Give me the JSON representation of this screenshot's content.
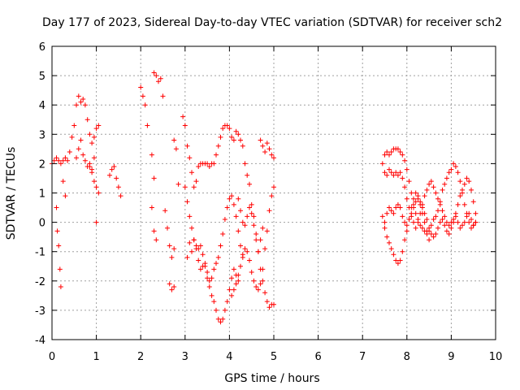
{
  "chart_data": {
    "type": "scatter",
    "title": "Day 177 of 2023, Sidereal Day-to-day VTEC variation (SDTVAR) for receiver sch2",
    "xlabel": "GPS time / hours",
    "ylabel": "SDTVAR / TECUs",
    "xlim": [
      0,
      10
    ],
    "ylim": [
      -4,
      6
    ],
    "x_ticks": [
      "0",
      "1",
      "2",
      "3",
      "4",
      "5",
      "6",
      "7",
      "8",
      "9",
      "10"
    ],
    "y_ticks": [
      "-4",
      "-3",
      "-2",
      "-1",
      "0",
      "1",
      "2",
      "3",
      "4",
      "5",
      "6"
    ],
    "grid": true,
    "marker": "+",
    "series": [
      {
        "name": "sch2",
        "color": "#ff0000",
        "segments": [
          {
            "x": [
              0.0,
              0.05,
              0.1,
              0.15,
              0.2,
              0.25,
              0.3,
              0.35
            ],
            "y": [
              2.0,
              2.1,
              2.2,
              2.1,
              2.0,
              2.1,
              2.2,
              2.1
            ]
          },
          {
            "x": [
              0.1,
              0.12,
              0.15,
              0.18,
              0.2
            ],
            "y": [
              0.5,
              -0.3,
              -0.8,
              -1.6,
              -2.2
            ]
          },
          {
            "x": [
              0.25,
              0.3
            ],
            "y": [
              1.4,
              0.9
            ]
          },
          {
            "x": [
              0.4,
              0.45,
              0.5,
              0.55,
              0.6,
              0.65,
              0.7,
              0.75,
              0.8,
              0.85,
              0.9,
              0.95,
              1.0,
              1.05
            ],
            "y": [
              2.4,
              2.9,
              3.3,
              4.0,
              4.3,
              4.1,
              4.2,
              4.0,
              3.5,
              3.0,
              2.7,
              2.9,
              3.2,
              3.3
            ]
          },
          {
            "x": [
              0.55,
              0.6,
              0.65,
              0.7,
              0.75,
              0.8,
              0.85,
              0.9,
              0.95,
              1.0,
              1.05
            ],
            "y": [
              2.2,
              2.5,
              2.8,
              2.3,
              2.1,
              1.9,
              2.0,
              1.7,
              1.4,
              1.2,
              1.0
            ]
          },
          {
            "x": [
              0.85,
              0.9,
              0.95,
              1.0
            ],
            "y": [
              1.9,
              1.8,
              2.2,
              0.0
            ]
          },
          {
            "x": [
              1.3,
              1.35,
              1.4,
              1.45,
              1.5,
              1.55
            ],
            "y": [
              1.6,
              1.8,
              1.9,
              1.5,
              1.2,
              0.9
            ]
          },
          {
            "x": [
              2.0,
              2.05,
              2.1,
              2.15
            ],
            "y": [
              4.6,
              4.3,
              4.0,
              3.3
            ]
          },
          {
            "x": [
              2.3,
              2.35,
              2.4,
              2.45,
              2.5
            ],
            "y": [
              5.1,
              5.0,
              4.8,
              4.9,
              4.3
            ]
          },
          {
            "x": [
              2.25,
              2.3
            ],
            "y": [
              2.3,
              1.5
            ]
          },
          {
            "x": [
              2.25,
              2.3,
              2.35
            ],
            "y": [
              0.5,
              -0.3,
              -0.6
            ]
          },
          {
            "x": [
              2.55,
              2.6,
              2.65,
              2.7,
              2.75
            ],
            "y": [
              0.4,
              -0.2,
              -0.8,
              -1.2,
              -0.9
            ]
          },
          {
            "x": [
              2.65,
              2.7,
              2.75
            ],
            "y": [
              -2.1,
              -2.3,
              -2.2
            ]
          },
          {
            "x": [
              2.75,
              2.8,
              2.85
            ],
            "y": [
              2.8,
              2.5,
              1.3
            ]
          },
          {
            "x": [
              2.95,
              3.0,
              3.05,
              3.1,
              3.15,
              3.2,
              3.25,
              3.3,
              3.35,
              3.4,
              3.45,
              3.5,
              3.55,
              3.6,
              3.65,
              3.7,
              3.75,
              3.8,
              3.85,
              3.9,
              3.95,
              4.0,
              4.05,
              4.1,
              4.15,
              4.2,
              4.25,
              4.3,
              4.35,
              4.4,
              4.45,
              4.5,
              4.55,
              4.6,
              4.65,
              4.7,
              4.75,
              4.8,
              4.85,
              4.9,
              4.95,
              5.0
            ],
            "y": [
              3.6,
              3.3,
              2.6,
              2.2,
              1.7,
              1.2,
              1.4,
              1.9,
              2.0,
              2.0,
              2.0,
              2.0,
              1.9,
              2.0,
              2.0,
              2.3,
              2.6,
              2.9,
              3.2,
              3.3,
              3.3,
              3.2,
              2.9,
              2.8,
              3.1,
              3.0,
              2.8,
              2.6,
              2.0,
              1.6,
              1.3,
              0.6,
              0.2,
              -0.4,
              -1.0,
              -1.6,
              -2.0,
              -2.4,
              -2.7,
              -2.9,
              -2.8,
              -2.8
            ]
          },
          {
            "x": [
              3.0,
              3.05,
              3.1,
              3.15,
              3.2,
              3.25,
              3.3,
              3.35,
              3.4,
              3.45,
              3.5,
              3.55,
              3.6,
              3.65,
              3.7,
              3.75,
              3.8,
              3.85,
              3.9,
              3.95,
              4.0,
              4.05,
              4.1,
              4.15,
              4.2
            ],
            "y": [
              1.2,
              0.7,
              0.2,
              -0.2,
              -0.6,
              -0.8,
              -0.9,
              -0.8,
              -1.1,
              -1.5,
              -1.9,
              -2.2,
              -2.5,
              -2.7,
              -3.0,
              -3.3,
              -3.4,
              -3.3,
              -3.0,
              -2.7,
              -2.3,
              -1.9,
              -1.6,
              -1.8,
              -2.0
            ]
          },
          {
            "x": [
              3.05,
              3.1,
              3.15,
              3.2,
              3.25,
              3.3,
              3.35,
              3.4,
              3.45,
              3.5,
              3.55,
              3.6,
              3.65,
              3.7,
              3.75,
              3.8,
              3.85,
              3.9,
              3.95,
              4.0,
              4.05,
              4.1,
              4.15,
              4.2,
              4.25,
              4.3
            ],
            "y": [
              -1.2,
              -0.7,
              -1.0,
              -0.6,
              -0.9,
              -1.3,
              -1.6,
              -1.5,
              -1.4,
              -1.7,
              -2.0,
              -1.9,
              -1.6,
              -1.4,
              -1.2,
              -0.8,
              -0.4,
              0.1,
              0.5,
              0.8,
              0.9,
              0.6,
              0.2,
              -0.3,
              -0.8,
              -1.1
            ]
          },
          {
            "x": [
              4.05,
              4.1,
              4.15,
              4.2,
              4.25,
              4.3,
              4.35,
              4.4,
              4.45,
              4.5,
              4.55,
              4.6,
              4.65,
              4.7,
              4.75,
              4.8,
              4.85,
              4.9,
              4.95,
              5.0
            ],
            "y": [
              -2.5,
              -2.3,
              -2.1,
              -1.8,
              -1.5,
              -1.2,
              -0.9,
              -1.0,
              -1.3,
              -1.7,
              -2.0,
              -2.2,
              -2.3,
              -2.1,
              -1.6,
              -0.9,
              -0.3,
              0.4,
              0.9,
              1.2
            ]
          },
          {
            "x": [
              4.2,
              4.25,
              4.3,
              4.35,
              4.4,
              4.45,
              4.5,
              4.55,
              4.6,
              4.65,
              4.7,
              4.75
            ],
            "y": [
              0.8,
              0.4,
              0.0,
              -0.1,
              0.2,
              0.5,
              0.3,
              -0.1,
              -0.6,
              -1.0,
              -0.6,
              -0.2
            ]
          },
          {
            "x": [
              4.7,
              4.75,
              4.8,
              4.85,
              4.9,
              4.95,
              5.0
            ],
            "y": [
              2.8,
              2.6,
              2.4,
              2.7,
              2.5,
              2.3,
              2.2
            ]
          },
          {
            "x": [
              7.45,
              7.5,
              7.55,
              7.6,
              7.65,
              7.7,
              7.75,
              7.8,
              7.85,
              7.9,
              7.95,
              8.0,
              8.05,
              8.1,
              8.15,
              8.2,
              8.25,
              8.3,
              8.35,
              8.4,
              8.45,
              8.5,
              8.55,
              8.6,
              8.65,
              8.7,
              8.75,
              8.8,
              8.85,
              8.9,
              8.95,
              9.0,
              9.05,
              9.1,
              9.15,
              9.2,
              9.25,
              9.3,
              9.35,
              9.4,
              9.45,
              9.5,
              9.55
            ],
            "y": [
              2.0,
              2.3,
              2.4,
              2.3,
              2.4,
              2.5,
              2.5,
              2.5,
              2.4,
              2.3,
              2.1,
              1.8,
              1.4,
              1.0,
              0.6,
              0.3,
              0.1,
              -0.1,
              -0.2,
              -0.3,
              -0.4,
              -0.3,
              -0.1,
              0.1,
              0.2,
              0.4,
              0.7,
              1.1,
              1.3,
              1.5,
              1.7,
              1.8,
              2.0,
              1.9,
              1.7,
              1.4,
              1.0,
              0.6,
              0.3,
              0.0,
              -0.2,
              -0.1,
              0.0
            ]
          },
          {
            "x": [
              7.5,
              7.55,
              7.6,
              7.65,
              7.7,
              7.75,
              7.8,
              7.85,
              7.9,
              7.95,
              8.0,
              8.05,
              8.1,
              8.15,
              8.2,
              8.25,
              8.3,
              8.35,
              8.4,
              8.45,
              8.5,
              8.55,
              8.6,
              8.65,
              8.7,
              8.75,
              8.8,
              8.85,
              8.9,
              8.95,
              9.0,
              9.05,
              9.1,
              9.15,
              9.2,
              9.25,
              9.3,
              9.35,
              9.4,
              9.45,
              9.5,
              9.55
            ],
            "y": [
              1.7,
              1.6,
              1.8,
              1.7,
              1.6,
              1.7,
              1.6,
              1.7,
              1.5,
              1.2,
              0.8,
              0.5,
              0.2,
              0.0,
              -0.2,
              0.0,
              0.3,
              0.6,
              0.9,
              1.1,
              1.3,
              1.4,
              1.2,
              1.0,
              0.8,
              0.6,
              0.4,
              0.2,
              0.0,
              -0.1,
              0.0,
              0.1,
              0.2,
              0.0,
              -0.2,
              -0.1,
              0.0,
              0.2,
              0.3,
              0.1,
              -0.1,
              0.0
            ]
          },
          {
            "x": [
              7.45,
              7.5,
              7.55,
              7.6,
              7.65,
              7.7,
              7.75,
              7.8,
              7.85,
              7.9,
              7.95,
              8.0,
              8.05,
              8.1,
              8.15,
              8.2,
              8.25,
              8.3,
              8.35,
              8.4,
              8.45,
              8.5,
              8.55,
              8.6,
              8.65,
              8.7,
              8.75,
              8.8,
              8.85,
              8.9,
              8.95,
              9.0,
              9.05,
              9.1,
              9.15,
              9.2,
              9.25,
              9.3,
              9.35,
              9.4,
              9.45,
              9.5,
              9.55
            ],
            "y": [
              0.2,
              -0.2,
              -0.5,
              -0.7,
              -0.9,
              -1.1,
              -1.3,
              -1.4,
              -1.3,
              -1.0,
              -0.6,
              -0.3,
              0.1,
              0.5,
              0.8,
              1.0,
              0.9,
              0.7,
              0.5,
              0.3,
              0.1,
              -0.2,
              -0.4,
              -0.5,
              -0.4,
              -0.2,
              0.0,
              0.1,
              -0.1,
              -0.3,
              -0.4,
              -0.2,
              0.0,
              0.3,
              0.6,
              0.9,
              1.1,
              1.3,
              1.5,
              1.4,
              1.1,
              0.7,
              0.3
            ]
          },
          {
            "x": [
              7.5,
              7.55,
              7.6,
              7.65,
              7.7,
              7.75,
              7.8,
              7.85,
              7.9,
              7.95,
              8.0,
              8.05,
              8.1,
              8.15,
              8.2,
              8.25,
              8.3,
              8.35,
              8.4,
              8.45,
              8.5
            ],
            "y": [
              0.0,
              0.3,
              0.5,
              0.4,
              0.3,
              0.5,
              0.6,
              0.5,
              0.2,
              0.0,
              -0.1,
              0.1,
              0.3,
              0.5,
              0.7,
              0.8,
              0.6,
              0.3,
              0.0,
              -0.3,
              -0.6
            ]
          }
        ]
      }
    ]
  }
}
